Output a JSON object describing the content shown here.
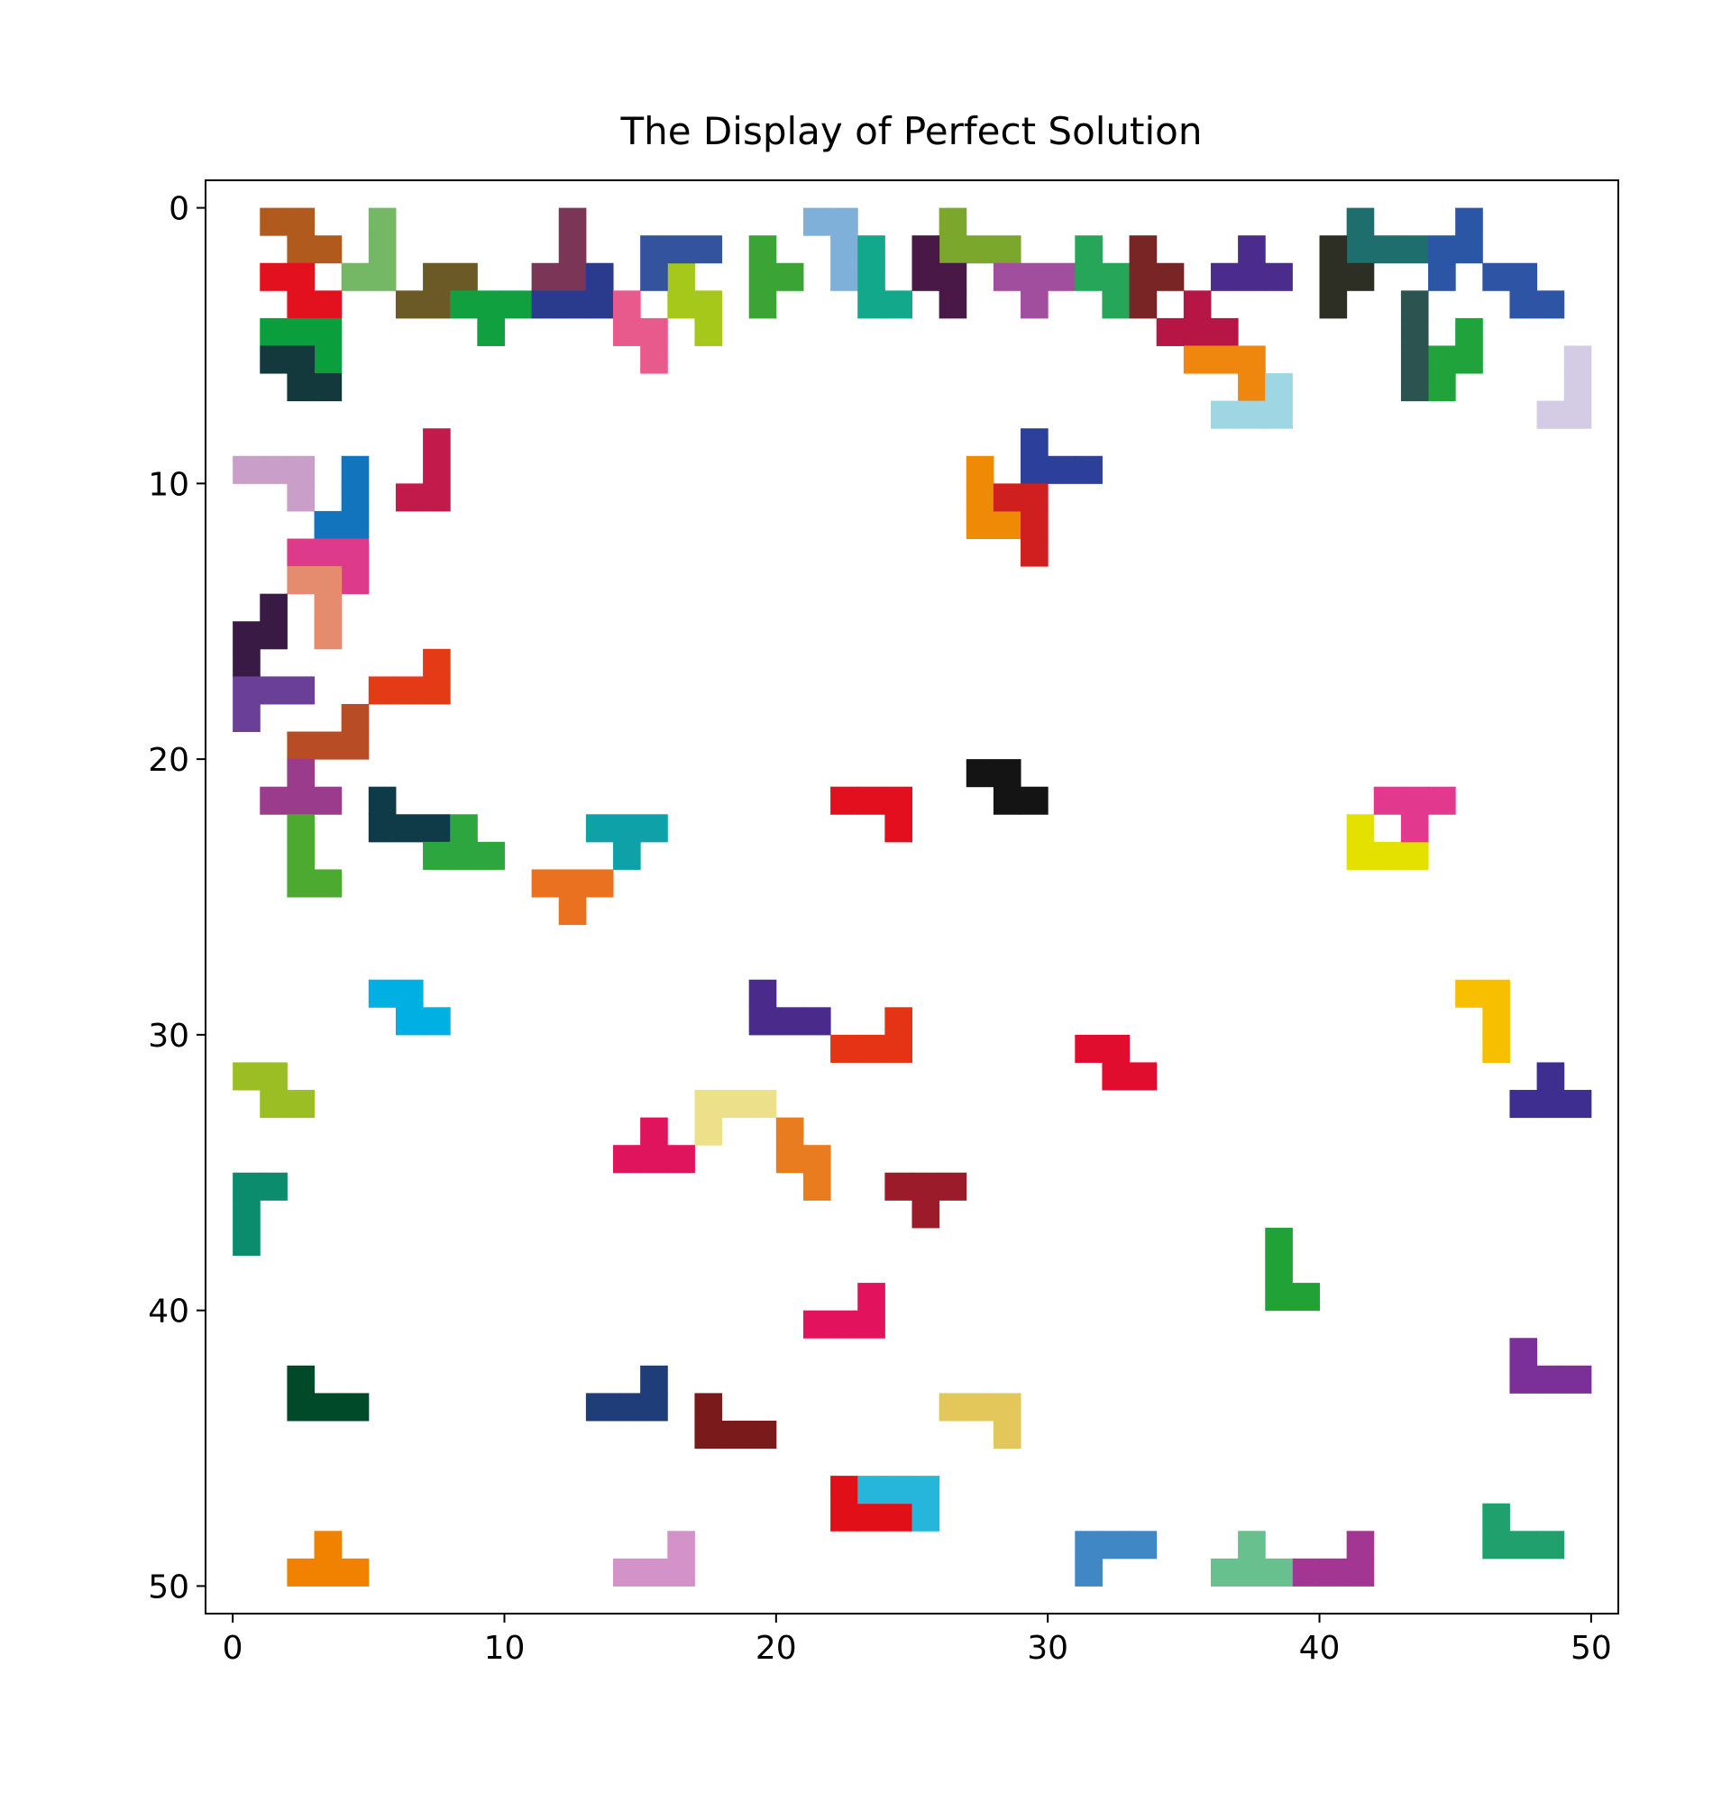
{
  "chart_data": {
    "type": "tile-grid",
    "title": "The Display of Perfect Solution",
    "xlim": [
      -1,
      51
    ],
    "ylim": [
      51,
      -1
    ],
    "xticks": [
      0,
      10,
      20,
      30,
      40,
      50
    ],
    "yticks": [
      0,
      10,
      20,
      30,
      40,
      50
    ],
    "pieces": [
      {
        "color": "#b05a1e",
        "x": [
          1,
          2,
          2,
          3
        ],
        "y": [
          0,
          0,
          1,
          1
        ]
      },
      {
        "color": "#74b865",
        "x": [
          5,
          5,
          5,
          4
        ],
        "y": [
          0,
          1,
          2,
          2
        ]
      },
      {
        "color": "#e3101d",
        "x": [
          1,
          2,
          2,
          3
        ],
        "y": [
          2,
          2,
          3,
          3
        ]
      },
      {
        "color": "#7b3556",
        "x": [
          12,
          12,
          12,
          11
        ],
        "y": [
          0,
          1,
          2,
          2
        ]
      },
      {
        "color": "#7fb0da",
        "x": [
          21,
          22,
          22,
          22
        ],
        "y": [
          0,
          0,
          1,
          2
        ]
      },
      {
        "color": "#7ba82c",
        "x": [
          26,
          26,
          27,
          28
        ],
        "y": [
          0,
          1,
          1,
          1
        ]
      },
      {
        "color": "#1f6e6e",
        "x": [
          41,
          41,
          42,
          43
        ],
        "y": [
          0,
          1,
          1,
          1
        ]
      },
      {
        "color": "#2b55a5",
        "x": [
          45,
          45,
          44,
          44
        ],
        "y": [
          0,
          1,
          1,
          2
        ]
      },
      {
        "color": "#0a9e3c",
        "x": [
          1,
          2,
          3,
          3
        ],
        "y": [
          4,
          4,
          4,
          5
        ]
      },
      {
        "color": "#14393c",
        "x": [
          1,
          2,
          2,
          3
        ],
        "y": [
          5,
          5,
          6,
          6
        ]
      },
      {
        "color": "#6b5a25",
        "x": [
          7,
          8,
          7,
          6
        ],
        "y": [
          2,
          2,
          3,
          3
        ]
      },
      {
        "color": "#10a040",
        "x": [
          8,
          9,
          10,
          9
        ],
        "y": [
          3,
          3,
          3,
          4
        ]
      },
      {
        "color": "#2a3a8c",
        "x": [
          11,
          12,
          13,
          13
        ],
        "y": [
          3,
          3,
          3,
          2
        ]
      },
      {
        "color": "#e95a8c",
        "x": [
          14,
          14,
          15,
          15
        ],
        "y": [
          3,
          4,
          4,
          5
        ]
      },
      {
        "color": "#a6c81a",
        "x": [
          16,
          16,
          17,
          17
        ],
        "y": [
          2,
          3,
          3,
          4
        ]
      },
      {
        "color": "#34539f",
        "x": [
          15,
          16,
          17,
          15
        ],
        "y": [
          1,
          1,
          1,
          2
        ]
      },
      {
        "color": "#3aa535",
        "x": [
          19,
          19,
          20,
          19
        ],
        "y": [
          1,
          2,
          2,
          3
        ]
      },
      {
        "color": "#12a88c",
        "x": [
          23,
          23,
          23,
          24
        ],
        "y": [
          1,
          2,
          3,
          3
        ]
      },
      {
        "color": "#4a1846",
        "x": [
          25,
          25,
          26,
          26
        ],
        "y": [
          1,
          2,
          2,
          3
        ]
      },
      {
        "color": "#a24e9e",
        "x": [
          28,
          29,
          30,
          29
        ],
        "y": [
          2,
          2,
          2,
          3
        ]
      },
      {
        "color": "#26a659",
        "x": [
          31,
          31,
          32,
          32
        ],
        "y": [
          1,
          2,
          2,
          3
        ]
      },
      {
        "color": "#7a2525",
        "x": [
          33,
          33,
          33,
          34
        ],
        "y": [
          1,
          2,
          3,
          2
        ]
      },
      {
        "color": "#4b2b8c",
        "x": [
          37,
          36,
          37,
          38
        ],
        "y": [
          1,
          2,
          2,
          2
        ]
      },
      {
        "color": "#2e2f24",
        "x": [
          40,
          40,
          41,
          40
        ],
        "y": [
          1,
          2,
          2,
          3
        ]
      },
      {
        "color": "#b71546",
        "x": [
          34,
          35,
          36,
          35
        ],
        "y": [
          4,
          4,
          4,
          3
        ]
      },
      {
        "color": "#ef860d",
        "x": [
          35,
          36,
          37,
          37
        ],
        "y": [
          5,
          5,
          5,
          6
        ]
      },
      {
        "color": "#21a33c",
        "x": [
          45,
          45,
          44,
          44
        ],
        "y": [
          4,
          5,
          5,
          6
        ]
      },
      {
        "color": "#2b5350",
        "x": [
          43,
          43,
          43,
          43
        ],
        "y": [
          3,
          4,
          5,
          6
        ]
      },
      {
        "color": "#d4cbe4",
        "x": [
          49,
          49,
          48,
          49
        ],
        "y": [
          5,
          6,
          7,
          7
        ]
      },
      {
        "color": "#2e55a5",
        "x": [
          46,
          47,
          47,
          48
        ],
        "y": [
          2,
          2,
          3,
          3
        ]
      },
      {
        "color": "#9fd6e3",
        "x": [
          36,
          37,
          38,
          38
        ],
        "y": [
          7,
          7,
          7,
          6
        ]
      },
      {
        "color": "#2b3f9b",
        "x": [
          29,
          29,
          30,
          31
        ],
        "y": [
          8,
          9,
          9,
          9
        ]
      },
      {
        "color": "#ee8a06",
        "x": [
          27,
          27,
          27,
          28
        ],
        "y": [
          9,
          10,
          11,
          11
        ]
      },
      {
        "color": "#cf1f1f",
        "x": [
          28,
          29,
          29,
          29
        ],
        "y": [
          10,
          10,
          11,
          12
        ]
      },
      {
        "color": "#c99ec8",
        "x": [
          0,
          1,
          2,
          2
        ],
        "y": [
          9,
          9,
          9,
          10
        ]
      },
      {
        "color": "#1274bc",
        "x": [
          4,
          4,
          3,
          4
        ],
        "y": [
          9,
          10,
          11,
          11
        ]
      },
      {
        "color": "#c21b4b",
        "x": [
          7,
          7,
          7,
          6
        ],
        "y": [
          8,
          9,
          10,
          10
        ]
      },
      {
        "color": "#de3a8c",
        "x": [
          2,
          3,
          4,
          4
        ],
        "y": [
          12,
          12,
          12,
          13
        ]
      },
      {
        "color": "#e58c6f",
        "x": [
          2,
          3,
          3,
          3
        ],
        "y": [
          13,
          13,
          14,
          15
        ]
      },
      {
        "color": "#391a45",
        "x": [
          1,
          0,
          1,
          0
        ],
        "y": [
          14,
          15,
          15,
          16
        ]
      },
      {
        "color": "#6a3f98",
        "x": [
          0,
          1,
          2,
          0
        ],
        "y": [
          17,
          17,
          17,
          18
        ]
      },
      {
        "color": "#e53a16",
        "x": [
          7,
          5,
          6,
          7
        ],
        "y": [
          16,
          17,
          17,
          17
        ]
      },
      {
        "color": "#b84c24",
        "x": [
          4,
          2,
          3,
          4
        ],
        "y": [
          18,
          19,
          19,
          19
        ]
      },
      {
        "color": "#9b3b8b",
        "x": [
          1,
          2,
          3,
          2
        ],
        "y": [
          21,
          21,
          21,
          20
        ]
      },
      {
        "color": "#0f3a48",
        "x": [
          5,
          5,
          6,
          7
        ],
        "y": [
          21,
          22,
          22,
          22
        ]
      },
      {
        "color": "#2da640",
        "x": [
          7,
          8,
          9,
          8
        ],
        "y": [
          23,
          23,
          23,
          22
        ]
      },
      {
        "color": "#4caa31",
        "x": [
          2,
          2,
          2,
          3
        ],
        "y": [
          22,
          23,
          24,
          24
        ]
      },
      {
        "color": "#0ea2a8",
        "x": [
          13,
          14,
          15,
          14
        ],
        "y": [
          22,
          22,
          22,
          23
        ]
      },
      {
        "color": "#e30f1f",
        "x": [
          22,
          23,
          24,
          24
        ],
        "y": [
          21,
          21,
          21,
          22
        ]
      },
      {
        "color": "#141414",
        "x": [
          27,
          28,
          28,
          29
        ],
        "y": [
          20,
          20,
          21,
          21
        ]
      },
      {
        "color": "#e4e000",
        "x": [
          41,
          41,
          42,
          43
        ],
        "y": [
          22,
          23,
          23,
          23
        ]
      },
      {
        "color": "#e2398f",
        "x": [
          42,
          43,
          44,
          43
        ],
        "y": [
          21,
          21,
          21,
          22
        ]
      },
      {
        "color": "#e9711f",
        "x": [
          11,
          12,
          13,
          12
        ],
        "y": [
          24,
          24,
          24,
          25
        ]
      },
      {
        "color": "#00b0e2",
        "x": [
          5,
          6,
          6,
          7
        ],
        "y": [
          28,
          28,
          29,
          29
        ]
      },
      {
        "color": "#4a2a8a",
        "x": [
          19,
          20,
          21,
          19
        ],
        "y": [
          29,
          29,
          29,
          28
        ]
      },
      {
        "color": "#e53316",
        "x": [
          24,
          23,
          24,
          22
        ],
        "y": [
          29,
          30,
          30,
          30
        ]
      },
      {
        "color": "#e00d2e",
        "x": [
          31,
          32,
          32,
          33
        ],
        "y": [
          30,
          30,
          31,
          31
        ]
      },
      {
        "color": "#f8bf00",
        "x": [
          45,
          46,
          46,
          46
        ],
        "y": [
          28,
          28,
          29,
          30
        ]
      },
      {
        "color": "#3e2e90",
        "x": [
          48,
          47,
          48,
          49
        ],
        "y": [
          31,
          32,
          32,
          32
        ]
      },
      {
        "color": "#9bbe25",
        "x": [
          0,
          1,
          1,
          2
        ],
        "y": [
          31,
          31,
          32,
          32
        ]
      },
      {
        "color": "#0b8c6c",
        "x": [
          0,
          1,
          0,
          0
        ],
        "y": [
          35,
          35,
          36,
          37
        ]
      },
      {
        "color": "#ede08a",
        "x": [
          17,
          18,
          19,
          17
        ],
        "y": [
          32,
          32,
          32,
          33
        ]
      },
      {
        "color": "#e97c1e",
        "x": [
          20,
          20,
          21,
          21
        ],
        "y": [
          33,
          34,
          34,
          35
        ]
      },
      {
        "color": "#e0135d",
        "x": [
          14,
          15,
          16,
          15
        ],
        "y": [
          34,
          34,
          34,
          33
        ]
      },
      {
        "color": "#9c1b2a",
        "x": [
          24,
          25,
          26,
          25
        ],
        "y": [
          35,
          35,
          35,
          36
        ]
      },
      {
        "color": "#20a236",
        "x": [
          38,
          38,
          39,
          38
        ],
        "y": [
          38,
          39,
          39,
          37
        ]
      },
      {
        "color": "#e3125c",
        "x": [
          21,
          22,
          23,
          23
        ],
        "y": [
          40,
          40,
          40,
          39
        ]
      },
      {
        "color": "#004a2a",
        "x": [
          2,
          2,
          3,
          4
        ],
        "y": [
          42,
          43,
          43,
          43
        ]
      },
      {
        "color": "#1f3e79",
        "x": [
          13,
          14,
          15,
          15
        ],
        "y": [
          43,
          43,
          43,
          42
        ]
      },
      {
        "color": "#7a1a1a",
        "x": [
          17,
          17,
          18,
          19
        ],
        "y": [
          43,
          44,
          44,
          44
        ]
      },
      {
        "color": "#e4c75a",
        "x": [
          26,
          27,
          28,
          28
        ],
        "y": [
          43,
          43,
          43,
          44
        ]
      },
      {
        "color": "#e00f18",
        "x": [
          22,
          22,
          23,
          24
        ],
        "y": [
          46,
          47,
          47,
          47
        ]
      },
      {
        "color": "#26b6dc",
        "x": [
          23,
          24,
          25,
          25
        ],
        "y": [
          46,
          46,
          46,
          47
        ]
      },
      {
        "color": "#7b3099",
        "x": [
          47,
          47,
          48,
          49
        ],
        "y": [
          41,
          42,
          42,
          42
        ]
      },
      {
        "color": "#1fa06c",
        "x": [
          46,
          46,
          47,
          48
        ],
        "y": [
          47,
          48,
          48,
          48
        ]
      },
      {
        "color": "#f08200",
        "x": [
          2,
          3,
          4,
          3
        ],
        "y": [
          49,
          49,
          49,
          48
        ]
      },
      {
        "color": "#d393c8",
        "x": [
          14,
          15,
          16,
          16
        ],
        "y": [
          49,
          49,
          49,
          48
        ]
      },
      {
        "color": "#a33593",
        "x": [
          39,
          40,
          41,
          41
        ],
        "y": [
          49,
          49,
          49,
          48
        ]
      },
      {
        "color": "#4087c6",
        "x": [
          31,
          32,
          33,
          31
        ],
        "y": [
          48,
          48,
          48,
          49
        ]
      },
      {
        "color": "#68c08e",
        "x": [
          36,
          37,
          38,
          37
        ],
        "y": [
          49,
          49,
          49,
          48
        ]
      }
    ]
  }
}
